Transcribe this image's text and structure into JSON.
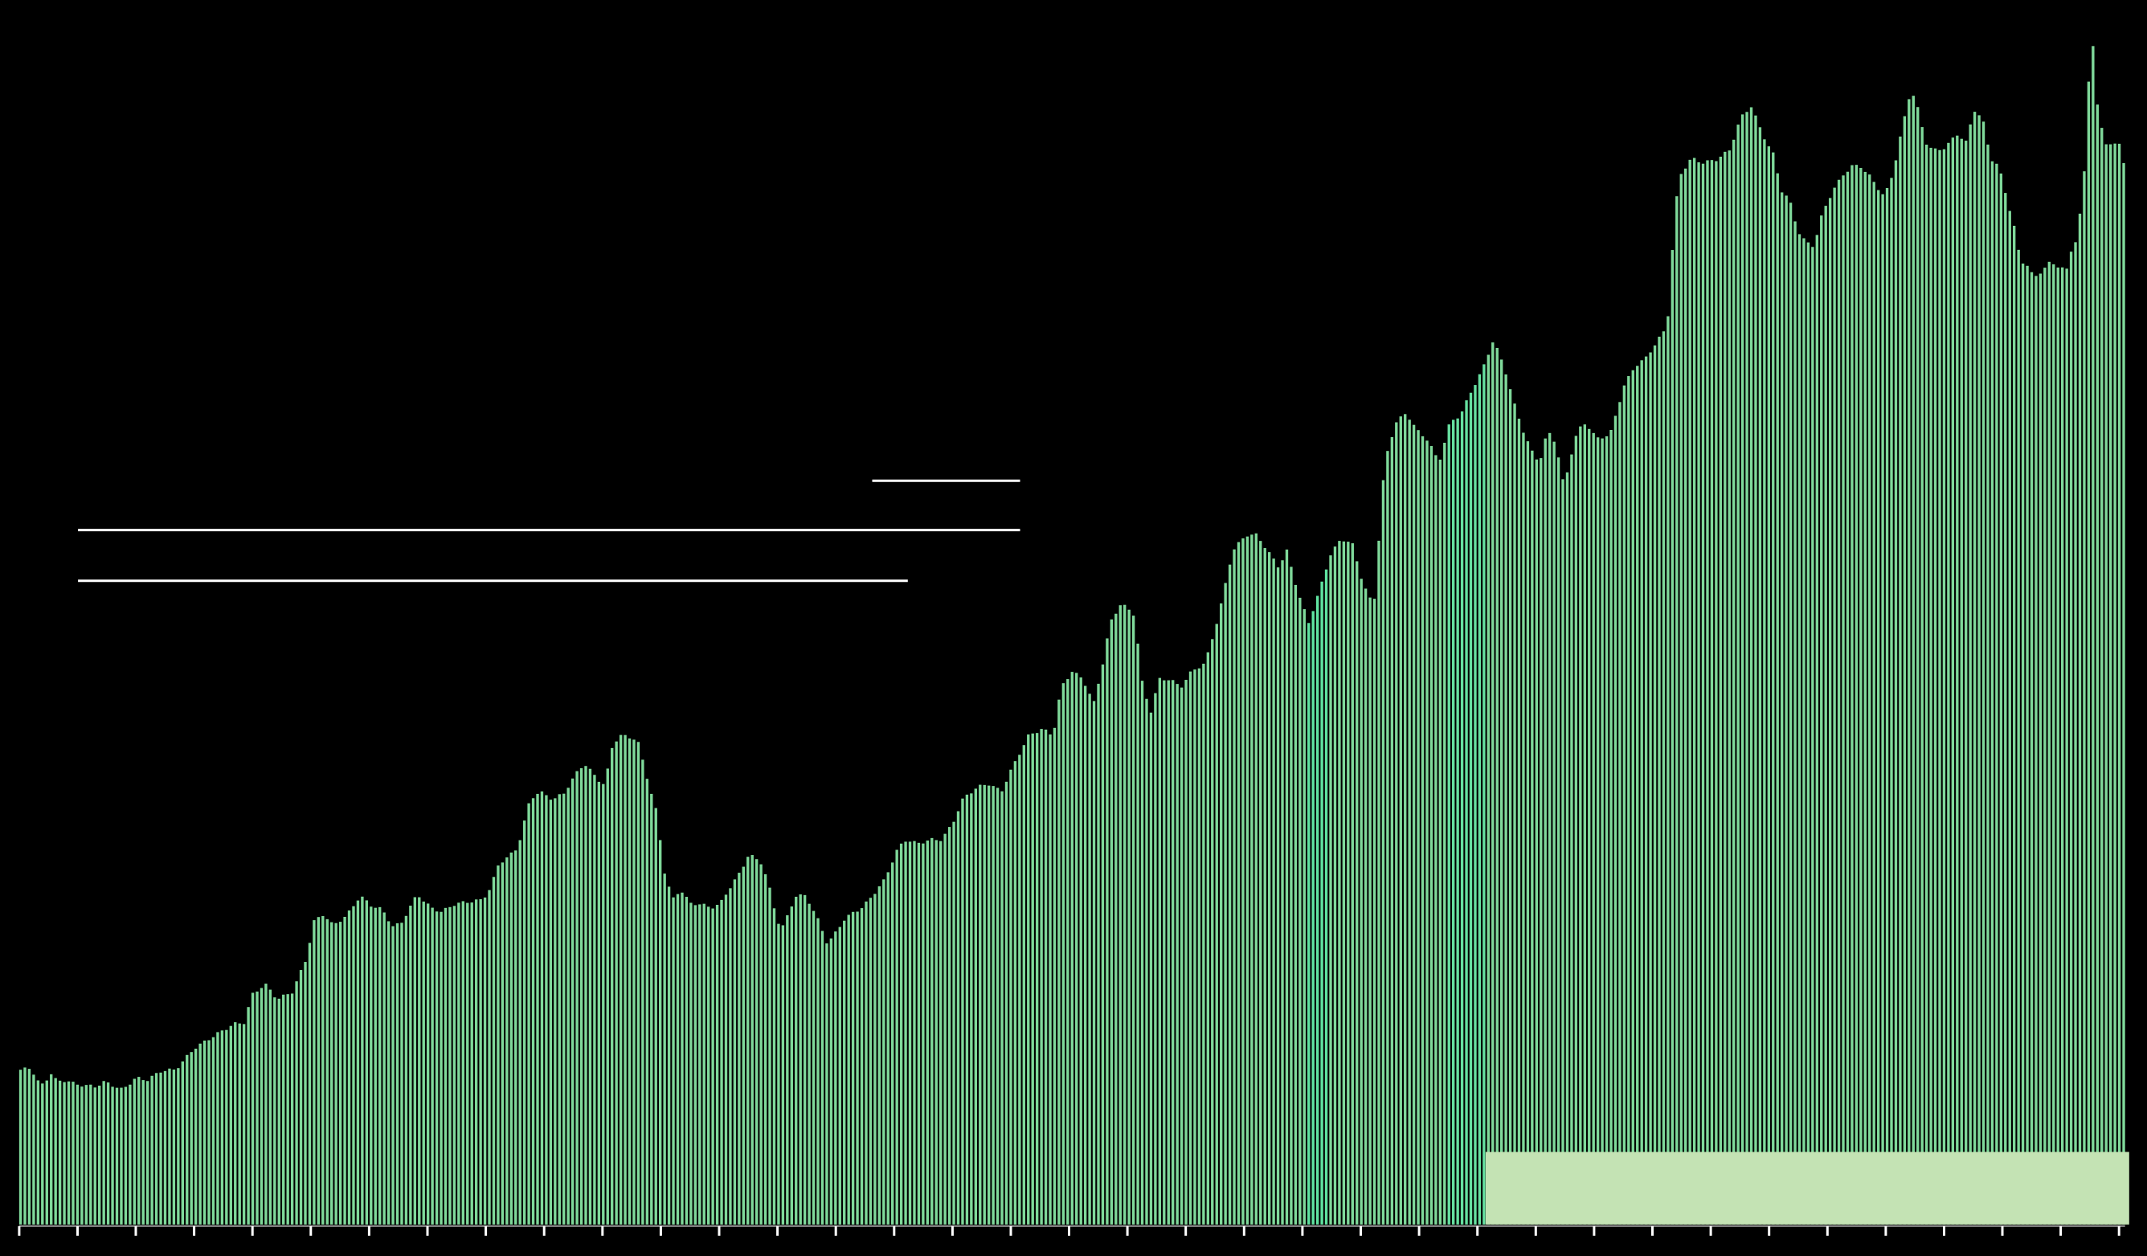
{
  "chart_data": {
    "type": "bar",
    "title": "",
    "xlabel": "",
    "ylabel": "",
    "ylim": [
      0,
      1510
    ],
    "grid": false,
    "legend": "none",
    "x_tick_count": 37,
    "anchors": [
      [
        0,
        193
      ],
      [
        8,
        195
      ],
      [
        12,
        180
      ],
      [
        17,
        173
      ],
      [
        22,
        190
      ],
      [
        27,
        178
      ],
      [
        34,
        180
      ],
      [
        40,
        175
      ],
      [
        55,
        172
      ],
      [
        62,
        178
      ],
      [
        75,
        168
      ],
      [
        85,
        183
      ],
      [
        93,
        180
      ],
      [
        104,
        192
      ],
      [
        114,
        193
      ],
      [
        128,
        220
      ],
      [
        145,
        238
      ],
      [
        157,
        250
      ],
      [
        165,
        252
      ],
      [
        170,
        286
      ],
      [
        180,
        300
      ],
      [
        189,
        281
      ],
      [
        200,
        290
      ],
      [
        210,
        330
      ],
      [
        216,
        378
      ],
      [
        223,
        387
      ],
      [
        230,
        373
      ],
      [
        240,
        385
      ],
      [
        250,
        410
      ],
      [
        258,
        398
      ],
      [
        266,
        393
      ],
      [
        274,
        372
      ],
      [
        280,
        375
      ],
      [
        292,
        412
      ],
      [
        302,
        395
      ],
      [
        310,
        390
      ],
      [
        320,
        400
      ],
      [
        340,
        405
      ],
      [
        346,
        420
      ],
      [
        352,
        450
      ],
      [
        360,
        460
      ],
      [
        366,
        470
      ],
      [
        375,
        530
      ],
      [
        382,
        540
      ],
      [
        392,
        530
      ],
      [
        400,
        538
      ],
      [
        410,
        565
      ],
      [
        415,
        575
      ],
      [
        425,
        555
      ],
      [
        430,
        548
      ],
      [
        436,
        600
      ],
      [
        442,
        610
      ],
      [
        454,
        605
      ],
      [
        460,
        565
      ],
      [
        468,
        515
      ],
      [
        474,
        440
      ],
      [
        480,
        405
      ],
      [
        486,
        418
      ],
      [
        493,
        400
      ],
      [
        500,
        400
      ],
      [
        508,
        395
      ],
      [
        515,
        400
      ],
      [
        522,
        420
      ],
      [
        530,
        440
      ],
      [
        536,
        462
      ],
      [
        546,
        450
      ],
      [
        552,
        415
      ],
      [
        556,
        385
      ],
      [
        560,
        368
      ],
      [
        566,
        390
      ],
      [
        570,
        410
      ],
      [
        578,
        410
      ],
      [
        586,
        384
      ],
      [
        594,
        350
      ],
      [
        600,
        364
      ],
      [
        606,
        380
      ],
      [
        612,
        388
      ],
      [
        620,
        396
      ],
      [
        626,
        408
      ],
      [
        636,
        430
      ],
      [
        646,
        470
      ],
      [
        652,
        480
      ],
      [
        660,
        475
      ],
      [
        670,
        480
      ],
      [
        678,
        480
      ],
      [
        686,
        500
      ],
      [
        694,
        532
      ],
      [
        704,
        545
      ],
      [
        712,
        550
      ],
      [
        722,
        540
      ],
      [
        730,
        570
      ],
      [
        742,
        610
      ],
      [
        752,
        618
      ],
      [
        760,
        610
      ],
      [
        766,
        670
      ],
      [
        774,
        690
      ],
      [
        782,
        680
      ],
      [
        790,
        650
      ],
      [
        796,
        695
      ],
      [
        802,
        750
      ],
      [
        810,
        775
      ],
      [
        820,
        760
      ],
      [
        826,
        670
      ],
      [
        832,
        640
      ],
      [
        838,
        680
      ],
      [
        846,
        680
      ],
      [
        854,
        670
      ],
      [
        862,
        690
      ],
      [
        872,
        700
      ],
      [
        882,
        760
      ],
      [
        892,
        840
      ],
      [
        902,
        860
      ],
      [
        910,
        860
      ],
      [
        918,
        840
      ],
      [
        926,
        820
      ],
      [
        932,
        840
      ],
      [
        940,
        790
      ],
      [
        948,
        750
      ],
      [
        956,
        790
      ],
      [
        964,
        835
      ],
      [
        972,
        855
      ],
      [
        980,
        850
      ],
      [
        988,
        800
      ],
      [
        996,
        770
      ],
      [
        1004,
        950
      ],
      [
        1012,
        1000
      ],
      [
        1020,
        1012
      ],
      [
        1028,
        990
      ],
      [
        1036,
        978
      ],
      [
        1044,
        950
      ],
      [
        1052,
        1000
      ],
      [
        1060,
        1010
      ],
      [
        1068,
        1040
      ],
      [
        1076,
        1066
      ],
      [
        1084,
        1103
      ],
      [
        1092,
        1070
      ],
      [
        1100,
        1020
      ],
      [
        1106,
        990
      ],
      [
        1112,
        965
      ],
      [
        1118,
        950
      ],
      [
        1124,
        990
      ],
      [
        1130,
        975
      ],
      [
        1136,
        920
      ],
      [
        1142,
        965
      ],
      [
        1146,
        990
      ],
      [
        1152,
        1000
      ],
      [
        1160,
        980
      ],
      [
        1170,
        985
      ],
      [
        1180,
        1045
      ],
      [
        1188,
        1070
      ],
      [
        1196,
        1080
      ],
      [
        1204,
        1100
      ],
      [
        1212,
        1120
      ],
      [
        1218,
        1270
      ],
      [
        1222,
        1310
      ],
      [
        1230,
        1330
      ],
      [
        1238,
        1324
      ],
      [
        1248,
        1328
      ],
      [
        1258,
        1340
      ],
      [
        1266,
        1380
      ],
      [
        1274,
        1395
      ],
      [
        1282,
        1360
      ],
      [
        1290,
        1335
      ],
      [
        1296,
        1290
      ],
      [
        1302,
        1278
      ],
      [
        1308,
        1240
      ],
      [
        1314,
        1225
      ],
      [
        1320,
        1220
      ],
      [
        1326,
        1260
      ],
      [
        1334,
        1290
      ],
      [
        1342,
        1310
      ],
      [
        1348,
        1320
      ],
      [
        1354,
        1320
      ],
      [
        1360,
        1310
      ],
      [
        1366,
        1295
      ],
      [
        1372,
        1282
      ],
      [
        1378,
        1310
      ],
      [
        1384,
        1360
      ],
      [
        1390,
        1405
      ],
      [
        1394,
        1410
      ],
      [
        1398,
        1380
      ],
      [
        1402,
        1350
      ],
      [
        1408,
        1340
      ],
      [
        1414,
        1340
      ],
      [
        1420,
        1350
      ],
      [
        1426,
        1360
      ],
      [
        1432,
        1350
      ],
      [
        1438,
        1390
      ],
      [
        1444,
        1380
      ],
      [
        1450,
        1330
      ],
      [
        1456,
        1320
      ],
      [
        1462,
        1280
      ],
      [
        1468,
        1240
      ],
      [
        1472,
        1200
      ],
      [
        1476,
        1200
      ],
      [
        1482,
        1180
      ],
      [
        1488,
        1190
      ],
      [
        1494,
        1200
      ],
      [
        1500,
        1195
      ],
      [
        1506,
        1190
      ],
      [
        1510,
        1220
      ],
      [
        1514,
        1230
      ],
      [
        1520,
        1330
      ],
      [
        1524,
        1508
      ],
      [
        1528,
        1400
      ],
      [
        1534,
        1350
      ],
      [
        1540,
        1345
      ],
      [
        1546,
        1350
      ],
      [
        1550,
        1300
      ]
    ]
  }
}
